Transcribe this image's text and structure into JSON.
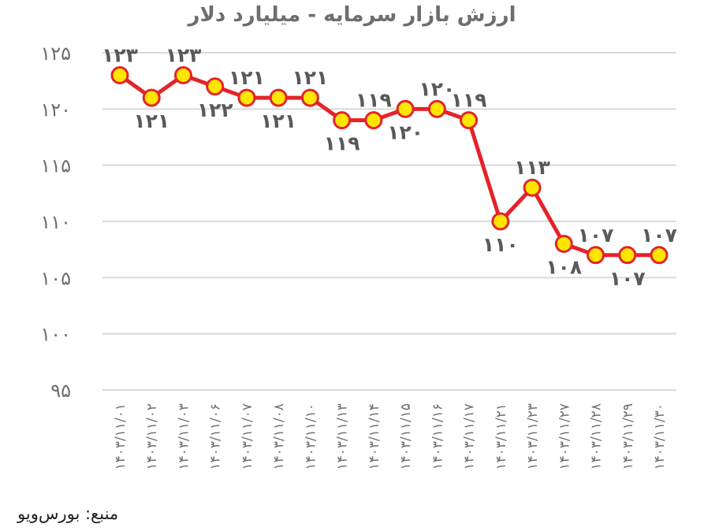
{
  "title": "ارزش بازار سرمایه - میلیارد دلار",
  "source": "منبع: بورس‌ویو",
  "colors": {
    "line": "#e4232a",
    "marker_fill": "#ffe600",
    "marker_stroke": "#e4232a",
    "grid": "#d9d9d9",
    "tick_text": "#6d6e71",
    "label_text": "#58595b"
  },
  "chart_data": {
    "type": "line",
    "title": "ارزش بازار سرمایه - میلیارد دلار",
    "xlabel": "",
    "ylabel": "",
    "ylim": [
      95,
      125
    ],
    "yticks": [
      125,
      120,
      115,
      110,
      105,
      100,
      95
    ],
    "ytick_labels": [
      "۱۲۵",
      "۱۲۰",
      "۱۱۵",
      "۱۱۰",
      "۱۰۵",
      "۱۰۰",
      "۹۵"
    ],
    "grid": true,
    "legend": "none",
    "categories": [
      "۱۴۰۳/۱۱/۰۱",
      "۱۴۰۳/۱۱/۰۲",
      "۱۴۰۳/۱۱/۰۳",
      "۱۴۰۳/۱۱/۰۶",
      "۱۴۰۳/۱۱/۰۷",
      "۱۴۰۳/۱۱/۰۸",
      "۱۴۰۳/۱۱/۱۰",
      "۱۴۰۳/۱۱/۱۳",
      "۱۴۰۳/۱۱/۱۴",
      "۱۴۰۳/۱۱/۱۵",
      "۱۴۰۳/۱۱/۱۶",
      "۱۴۰۳/۱۱/۱۷",
      "۱۴۰۳/۱۱/۲۱",
      "۱۴۰۳/۱۱/۲۳",
      "۱۴۰۳/۱۱/۲۷",
      "۱۴۰۳/۱۱/۲۸",
      "۱۴۰۳/۱۱/۲۹",
      "۱۴۰۳/۱۱/۳۰"
    ],
    "values": [
      123,
      121,
      123,
      122,
      121,
      121,
      121,
      119,
      119,
      120,
      120,
      119,
      110,
      113,
      108,
      107,
      107,
      107
    ],
    "data_labels": [
      "۱۲۳",
      "۱۲۱",
      "۱۲۳",
      "۱۲۲",
      "۱۲۱",
      "۱۲۱",
      "۱۲۱",
      "۱۱۹",
      "۱۱۹",
      "۱۲۰",
      "۱۲۰",
      "۱۱۹",
      "۱۱۰",
      "۱۱۳",
      "۱۰۸",
      "۱۰۷",
      "۱۰۷",
      "۱۰۷"
    ],
    "label_positions": [
      "above",
      "below",
      "above",
      "below",
      "above",
      "below",
      "above",
      "below",
      "above",
      "below",
      "above",
      "above",
      "below",
      "above",
      "below",
      "above",
      "below",
      "above"
    ]
  }
}
